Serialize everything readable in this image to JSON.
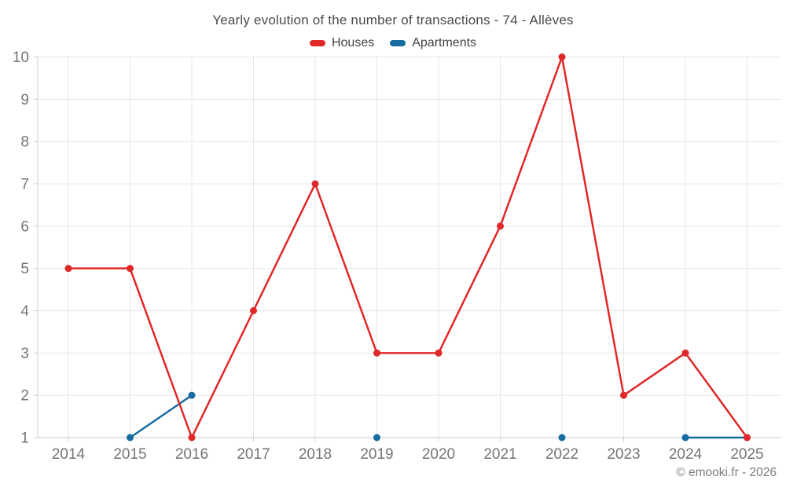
{
  "title": "Yearly evolution of the number of transactions - 74 - Allèves",
  "legend": {
    "houses_label": "Houses",
    "apartments_label": "Apartments"
  },
  "footer": "© emooki.fr - 2026",
  "colors": {
    "houses": "#e02828",
    "apartments": "#166ba0",
    "grid": "#e7e7e7",
    "axis": "#cccccc",
    "tick_label": "#757575"
  },
  "chart_data": {
    "type": "line",
    "title": "Yearly evolution of the number of transactions - 74 - Allèves",
    "x": [
      2014,
      2015,
      2016,
      2017,
      2018,
      2019,
      2020,
      2021,
      2022,
      2023,
      2024,
      2025
    ],
    "series": [
      {
        "name": "Houses",
        "color": "#e02828",
        "values": [
          5,
          5,
          1,
          4,
          7,
          3,
          3,
          6,
          10,
          2,
          3,
          1
        ]
      },
      {
        "name": "Apartments",
        "color": "#166ba0",
        "values": [
          null,
          1,
          2,
          null,
          null,
          1,
          null,
          null,
          1,
          null,
          1,
          1
        ]
      }
    ],
    "xlabel": "",
    "ylabel": "",
    "ylim": [
      1,
      10
    ],
    "yticks": [
      1,
      2,
      3,
      4,
      5,
      6,
      7,
      8,
      9,
      10
    ],
    "grid": true,
    "legend_position": "top",
    "markers": true
  }
}
